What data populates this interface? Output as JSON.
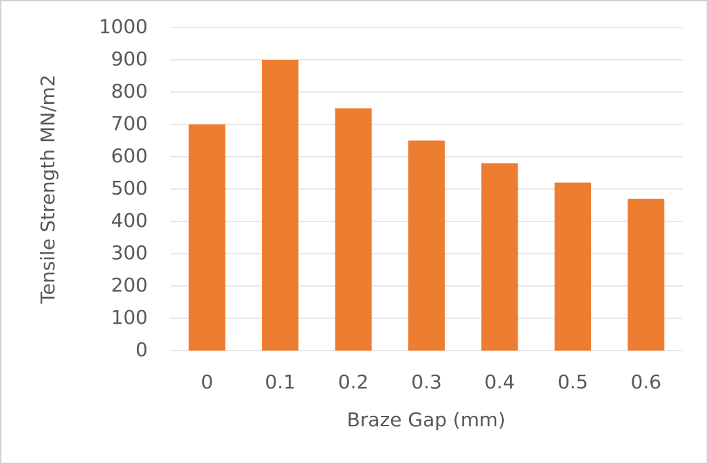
{
  "chart_data": {
    "type": "bar",
    "x_label": "Braze Gap (mm)",
    "y_label": "Tensile Strength MN/m2",
    "categories": [
      "0",
      "0.1",
      "0.2",
      "0.3",
      "0.4",
      "0.5",
      "0.6"
    ],
    "values": [
      700,
      900,
      750,
      650,
      580,
      520,
      470
    ],
    "color": "#ed7d31",
    "ylim": [
      0,
      1000
    ],
    "yticks": [
      0,
      100,
      200,
      300,
      400,
      500,
      600,
      700,
      800,
      900,
      1000
    ],
    "grid": true
  }
}
